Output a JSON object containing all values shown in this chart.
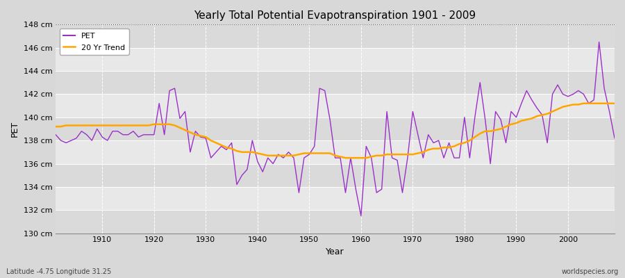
{
  "title": "Yearly Total Potential Evapotranspiration 1901 - 2009",
  "xlabel": "Year",
  "ylabel": "PET",
  "bottom_left_label": "Latitude -4.75 Longitude 31.25",
  "bottom_right_label": "worldspecies.org",
  "ylim": [
    130,
    148
  ],
  "yticks": [
    130,
    132,
    134,
    136,
    138,
    140,
    142,
    144,
    146,
    148
  ],
  "ytick_labels": [
    "130 cm",
    "132 cm",
    "134 cm",
    "136 cm",
    "138 cm",
    "140 cm",
    "142 cm",
    "144 cm",
    "146 cm",
    "148 cm"
  ],
  "xlim": [
    1901,
    2009
  ],
  "xticks": [
    1910,
    1920,
    1930,
    1940,
    1950,
    1960,
    1970,
    1980,
    1990,
    2000
  ],
  "pet_color": "#9B30C8",
  "trend_color": "#FFA500",
  "bg_color": "#D8D8D8",
  "band_light": "#E8E8E8",
  "band_dark": "#DADADA",
  "years": [
    1901,
    1902,
    1903,
    1904,
    1905,
    1906,
    1907,
    1908,
    1909,
    1910,
    1911,
    1912,
    1913,
    1914,
    1915,
    1916,
    1917,
    1918,
    1919,
    1920,
    1921,
    1922,
    1923,
    1924,
    1925,
    1926,
    1927,
    1928,
    1929,
    1930,
    1931,
    1932,
    1933,
    1934,
    1935,
    1936,
    1937,
    1938,
    1939,
    1940,
    1941,
    1942,
    1943,
    1944,
    1945,
    1946,
    1947,
    1948,
    1949,
    1950,
    1951,
    1952,
    1953,
    1954,
    1955,
    1956,
    1957,
    1958,
    1959,
    1960,
    1961,
    1962,
    1963,
    1964,
    1965,
    1966,
    1967,
    1968,
    1969,
    1970,
    1971,
    1972,
    1973,
    1974,
    1975,
    1976,
    1977,
    1978,
    1979,
    1980,
    1981,
    1982,
    1983,
    1984,
    1985,
    1986,
    1987,
    1988,
    1989,
    1990,
    1991,
    1992,
    1993,
    1994,
    1995,
    1996,
    1997,
    1998,
    1999,
    2000,
    2001,
    2002,
    2003,
    2004,
    2005,
    2006,
    2007,
    2008,
    2009
  ],
  "pet_values": [
    138.5,
    138.0,
    137.8,
    138.0,
    138.2,
    138.8,
    138.5,
    138.0,
    139.0,
    138.3,
    138.0,
    138.8,
    138.8,
    138.5,
    138.5,
    138.8,
    138.3,
    138.5,
    138.5,
    138.5,
    141.2,
    138.5,
    142.3,
    142.5,
    139.9,
    140.5,
    137.0,
    138.8,
    138.3,
    138.2,
    136.5,
    137.0,
    137.5,
    137.2,
    137.8,
    134.2,
    135.0,
    135.5,
    138.0,
    136.2,
    135.3,
    136.5,
    136.0,
    136.8,
    136.5,
    137.0,
    136.5,
    133.5,
    136.5,
    136.8,
    137.5,
    142.5,
    142.3,
    139.8,
    136.5,
    136.5,
    133.5,
    136.5,
    133.8,
    131.5,
    137.5,
    136.5,
    133.5,
    133.8,
    140.5,
    136.5,
    136.3,
    133.5,
    136.5,
    140.5,
    138.5,
    136.5,
    138.5,
    137.8,
    138.0,
    136.5,
    137.8,
    136.5,
    136.5,
    140.0,
    136.5,
    140.0,
    143.0,
    139.8,
    136.0,
    140.5,
    139.8,
    137.8,
    140.5,
    140.0,
    141.2,
    142.3,
    141.5,
    140.8,
    140.2,
    137.8,
    142.0,
    142.8,
    142.0,
    141.8,
    142.0,
    142.3,
    142.0,
    141.2,
    141.5,
    146.5,
    142.5,
    140.5,
    138.2
  ],
  "trend_values": [
    139.2,
    139.2,
    139.3,
    139.3,
    139.3,
    139.3,
    139.3,
    139.3,
    139.3,
    139.3,
    139.3,
    139.3,
    139.3,
    139.3,
    139.3,
    139.3,
    139.3,
    139.3,
    139.3,
    139.4,
    139.4,
    139.4,
    139.4,
    139.3,
    139.1,
    138.9,
    138.7,
    138.5,
    138.4,
    138.3,
    138.0,
    137.8,
    137.6,
    137.4,
    137.3,
    137.1,
    137.0,
    137.0,
    137.0,
    136.9,
    136.8,
    136.7,
    136.7,
    136.7,
    136.7,
    136.7,
    136.7,
    136.8,
    136.9,
    136.9,
    136.9,
    136.9,
    136.9,
    136.9,
    136.7,
    136.6,
    136.5,
    136.5,
    136.5,
    136.5,
    136.5,
    136.6,
    136.7,
    136.7,
    136.8,
    136.8,
    136.8,
    136.8,
    136.8,
    136.8,
    136.9,
    137.0,
    137.2,
    137.3,
    137.3,
    137.4,
    137.4,
    137.5,
    137.7,
    137.8,
    138.0,
    138.3,
    138.6,
    138.8,
    138.8,
    138.9,
    139.0,
    139.2,
    139.4,
    139.5,
    139.7,
    139.8,
    139.9,
    140.1,
    140.2,
    140.3,
    140.5,
    140.7,
    140.9,
    141.0,
    141.1,
    141.1,
    141.2,
    141.2,
    141.2,
    141.2,
    141.2,
    141.2,
    141.2
  ]
}
